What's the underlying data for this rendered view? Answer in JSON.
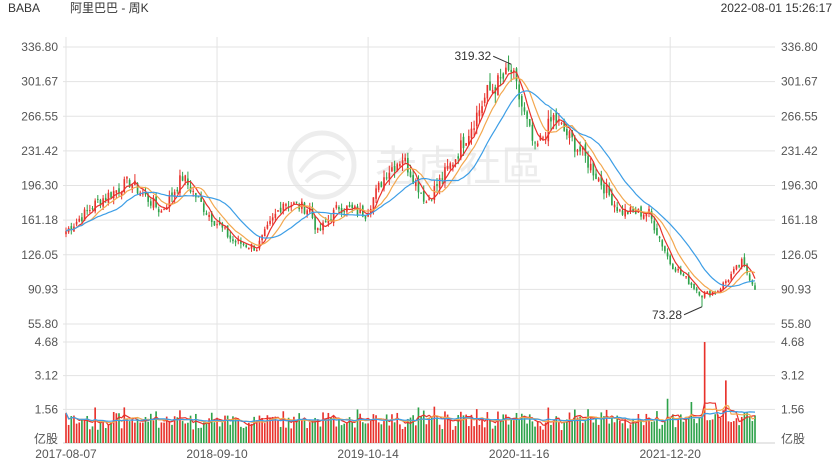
{
  "header": {
    "symbol": "BABA",
    "name": "阿里巴巴 - 周K",
    "datetime": "2022-08-01 15:26:17"
  },
  "watermark": {
    "text": "老虎社區"
  },
  "colors": {
    "up": "#e8312b",
    "down": "#2ea24a",
    "ma5": "#e8312b",
    "ma10": "#f3a74e",
    "ma20": "#3d9ee6",
    "grid": "#e3e3e3",
    "axis_text": "#555555"
  },
  "chart_data": {
    "type": "candlestick",
    "price_axis": {
      "ticks": [
        "336.80",
        "301.67",
        "266.55",
        "231.42",
        "196.30",
        "161.18",
        "126.05",
        "90.93",
        "55.80"
      ],
      "range": [
        55.8,
        336.8
      ]
    },
    "volume_axis": {
      "ticks": [
        "4.68",
        "3.12",
        "1.56",
        "亿股"
      ],
      "range": [
        0,
        4.68
      ],
      "unit": "亿股"
    },
    "x_tick_labels": [
      "2017-08-07",
      "2018-09-10",
      "2019-10-14",
      "2020-11-16",
      "2021-12-20"
    ],
    "annotations": [
      {
        "label": "319.32",
        "value": 319.32,
        "date": "2020-10-26"
      },
      {
        "label": "73.28",
        "value": 73.28,
        "date": "2022-03-14"
      }
    ],
    "price_anchors": [
      [
        "2017-08-07",
        150
      ],
      [
        "2017-10-30",
        180
      ],
      [
        "2018-01-22",
        200
      ],
      [
        "2018-04-16",
        170
      ],
      [
        "2018-06-11",
        205
      ],
      [
        "2018-08-13",
        170
      ],
      [
        "2018-10-22",
        140
      ],
      [
        "2018-12-24",
        133
      ],
      [
        "2019-03-04",
        180
      ],
      [
        "2019-05-13",
        172
      ],
      [
        "2019-06-03",
        148
      ],
      [
        "2019-07-29",
        175
      ],
      [
        "2019-10-07",
        168
      ],
      [
        "2019-12-02",
        210
      ],
      [
        "2020-01-13",
        225
      ],
      [
        "2020-03-16",
        180
      ],
      [
        "2020-06-01",
        225
      ],
      [
        "2020-08-24",
        290
      ],
      [
        "2020-10-26",
        312
      ],
      [
        "2020-12-28",
        232
      ],
      [
        "2021-02-15",
        265
      ],
      [
        "2021-05-03",
        228
      ],
      [
        "2021-08-09",
        170
      ],
      [
        "2021-10-25",
        168
      ],
      [
        "2021-12-20",
        118
      ],
      [
        "2022-03-14",
        85
      ],
      [
        "2022-04-25",
        90
      ],
      [
        "2022-06-27",
        118
      ],
      [
        "2022-08-01",
        93
      ]
    ],
    "moving_averages": [
      "MA5",
      "MA10",
      "MA20"
    ]
  }
}
